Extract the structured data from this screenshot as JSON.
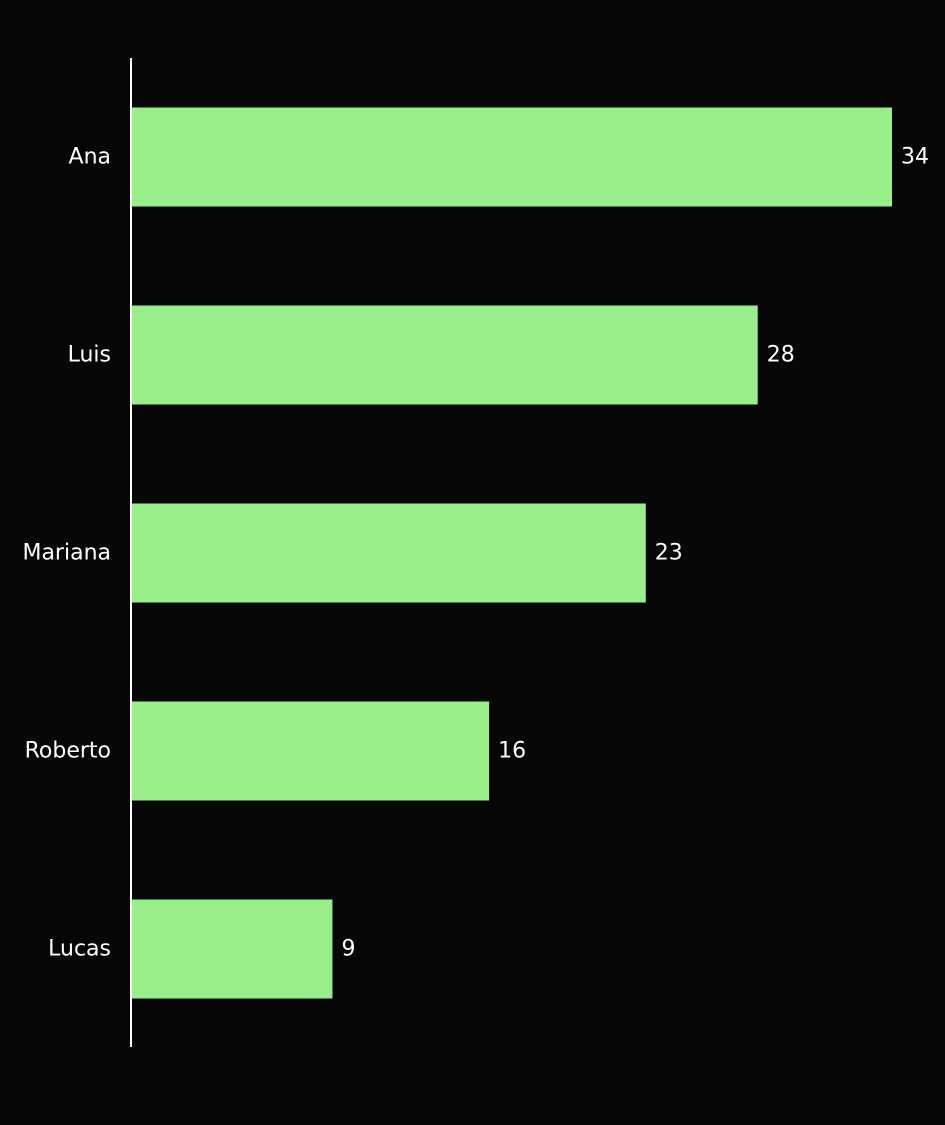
{
  "chart_data": {
    "type": "bar",
    "orientation": "horizontal",
    "title": "",
    "xlabel": "",
    "ylabel": "",
    "categories": [
      "Ana",
      "Luis",
      "Mariana",
      "Roberto",
      "Lucas"
    ],
    "values": [
      34,
      28,
      23,
      16,
      9
    ],
    "xlim": [
      0,
      34
    ],
    "grid": false,
    "legend": "none",
    "data_labels": true,
    "bar_color": "#98ee88",
    "axis_color": "#ffffff",
    "background_color": "#070707",
    "text_color": "#ffffff"
  }
}
